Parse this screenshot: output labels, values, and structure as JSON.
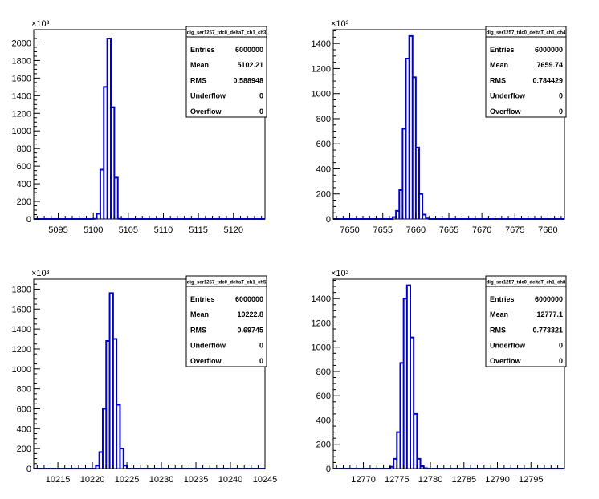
{
  "chart_data": [
    {
      "type": "histogram",
      "title": "dig_ser1257_tdc0_deltaT_ch1_ch3",
      "y_multiplier": "×10³",
      "xlim": [
        5091.5,
        5124.5
      ],
      "ylim": [
        0,
        2150
      ],
      "xticks": [
        "5095",
        "5100",
        "5105",
        "5110",
        "5115",
        "5120"
      ],
      "xtick_values": [
        5095,
        5100,
        5105,
        5110,
        5115,
        5120
      ],
      "yticks": [
        "0",
        "200",
        "400",
        "600",
        "800",
        "1000",
        "1200",
        "1400",
        "1600",
        "1800",
        "2000"
      ],
      "ytick_values": [
        0,
        200,
        400,
        600,
        800,
        1000,
        1200,
        1400,
        1600,
        1800,
        2000
      ],
      "bin_width": 0.5,
      "bins": [
        {
          "x": 5100.0,
          "y": 2
        },
        {
          "x": 5100.5,
          "y": 60
        },
        {
          "x": 5101.0,
          "y": 560
        },
        {
          "x": 5101.5,
          "y": 1500
        },
        {
          "x": 5102.0,
          "y": 2050
        },
        {
          "x": 5102.5,
          "y": 1270
        },
        {
          "x": 5103.0,
          "y": 470
        },
        {
          "x": 5103.5,
          "y": 2
        }
      ],
      "stats": {
        "title": "dig_ser1257_tdc0_deltaT_ch1_ch3",
        "rows": [
          {
            "label": "Entries",
            "value": "6000000"
          },
          {
            "label": "Mean",
            "value": "5102.21"
          },
          {
            "label": "RMS",
            "value": "0.588948"
          },
          {
            "label": "Underflow",
            "value": "0"
          },
          {
            "label": "Overflow",
            "value": "0"
          }
        ]
      }
    },
    {
      "type": "histogram",
      "title": "dig_ser1257_tdc0_deltaT_ch1_ch4",
      "y_multiplier": "×10³",
      "xlim": [
        7647.5,
        7682.5
      ],
      "ylim": [
        0,
        1510
      ],
      "xticks": [
        "7650",
        "7655",
        "7660",
        "7665",
        "7670",
        "7675",
        "7680"
      ],
      "xtick_values": [
        7650,
        7655,
        7660,
        7665,
        7670,
        7675,
        7680
      ],
      "yticks": [
        "0",
        "200",
        "400",
        "600",
        "800",
        "1000",
        "1200",
        "1400"
      ],
      "ytick_values": [
        0,
        200,
        400,
        600,
        800,
        1000,
        1200,
        1400
      ],
      "bin_width": 0.5,
      "bins": [
        {
          "x": 7656.5,
          "y": 15
        },
        {
          "x": 7657.0,
          "y": 65
        },
        {
          "x": 7657.5,
          "y": 230
        },
        {
          "x": 7658.0,
          "y": 720
        },
        {
          "x": 7658.5,
          "y": 1280
        },
        {
          "x": 7659.0,
          "y": 1460
        },
        {
          "x": 7659.5,
          "y": 1130
        },
        {
          "x": 7660.0,
          "y": 570
        },
        {
          "x": 7660.5,
          "y": 200
        },
        {
          "x": 7661.0,
          "y": 35
        },
        {
          "x": 7661.5,
          "y": 5
        }
      ],
      "stats": {
        "title": "dig_ser1257_tdc0_deltaT_ch1_ch4",
        "rows": [
          {
            "label": "Entries",
            "value": "6000000"
          },
          {
            "label": "Mean",
            "value": "7659.74"
          },
          {
            "label": "RMS",
            "value": "0.784429"
          },
          {
            "label": "Underflow",
            "value": "0"
          },
          {
            "label": "Overflow",
            "value": "0"
          }
        ]
      }
    },
    {
      "type": "histogram",
      "title": "dig_ser1257_tdc0_deltaT_ch1_ch5",
      "y_multiplier": "×10³",
      "xlim": [
        10211.5,
        10245.0
      ],
      "ylim": [
        0,
        1900
      ],
      "xticks": [
        "10215",
        "10220",
        "10225",
        "10230",
        "10235",
        "10240",
        "10245"
      ],
      "xtick_values": [
        10215,
        10220,
        10225,
        10230,
        10235,
        10240,
        10245
      ],
      "yticks": [
        "0",
        "200",
        "400",
        "600",
        "800",
        "1000",
        "1200",
        "1400",
        "1600",
        "1800"
      ],
      "ytick_values": [
        0,
        200,
        400,
        600,
        800,
        1000,
        1200,
        1400,
        1600,
        1800
      ],
      "bin_width": 0.5,
      "bins": [
        {
          "x": 10220.5,
          "y": 30
        },
        {
          "x": 10221.0,
          "y": 165
        },
        {
          "x": 10221.5,
          "y": 600
        },
        {
          "x": 10222.0,
          "y": 1280
        },
        {
          "x": 10222.5,
          "y": 1760
        },
        {
          "x": 10223.0,
          "y": 1300
        },
        {
          "x": 10223.5,
          "y": 640
        },
        {
          "x": 10224.0,
          "y": 200
        },
        {
          "x": 10224.5,
          "y": 30
        }
      ],
      "stats": {
        "title": "dig_ser1257_tdc0_deltaT_ch1_ch5",
        "rows": [
          {
            "label": "Entries",
            "value": "6000000"
          },
          {
            "label": "Mean",
            "value": "10222.8"
          },
          {
            "label": "RMS",
            "value": "0.69745"
          },
          {
            "label": "Underflow",
            "value": "0"
          },
          {
            "label": "Overflow",
            "value": "0"
          }
        ]
      }
    },
    {
      "type": "histogram",
      "title": "dig_ser1257_tdc0_deltaT_ch1_ch8",
      "y_multiplier": "×10³",
      "xlim": [
        12765.5,
        12800.0
      ],
      "ylim": [
        0,
        1560
      ],
      "xticks": [
        "12770",
        "12775",
        "12780",
        "12785",
        "12790",
        "12795"
      ],
      "xtick_values": [
        12770,
        12775,
        12780,
        12785,
        12790,
        12795
      ],
      "yticks": [
        "0",
        "200",
        "400",
        "600",
        "800",
        "1000",
        "1200",
        "1400"
      ],
      "ytick_values": [
        0,
        200,
        400,
        600,
        800,
        1000,
        1200,
        1400
      ],
      "bin_width": 0.5,
      "bins": [
        {
          "x": 12774.0,
          "y": 15
        },
        {
          "x": 12774.5,
          "y": 80
        },
        {
          "x": 12775.0,
          "y": 300
        },
        {
          "x": 12775.5,
          "y": 870
        },
        {
          "x": 12776.0,
          "y": 1400
        },
        {
          "x": 12776.5,
          "y": 1510
        },
        {
          "x": 12777.0,
          "y": 1080
        },
        {
          "x": 12777.5,
          "y": 450
        },
        {
          "x": 12778.0,
          "y": 80
        },
        {
          "x": 12778.5,
          "y": 20
        },
        {
          "x": 12779.0,
          "y": 3
        }
      ],
      "stats": {
        "title": "dig_ser1257_tdc0_deltaT_ch1_ch8",
        "rows": [
          {
            "label": "Entries",
            "value": "6000000"
          },
          {
            "label": "Mean",
            "value": "12777.1"
          },
          {
            "label": "RMS",
            "value": "0.773321"
          },
          {
            "label": "Underflow",
            "value": "0"
          },
          {
            "label": "Overflow",
            "value": "0"
          }
        ]
      }
    }
  ]
}
